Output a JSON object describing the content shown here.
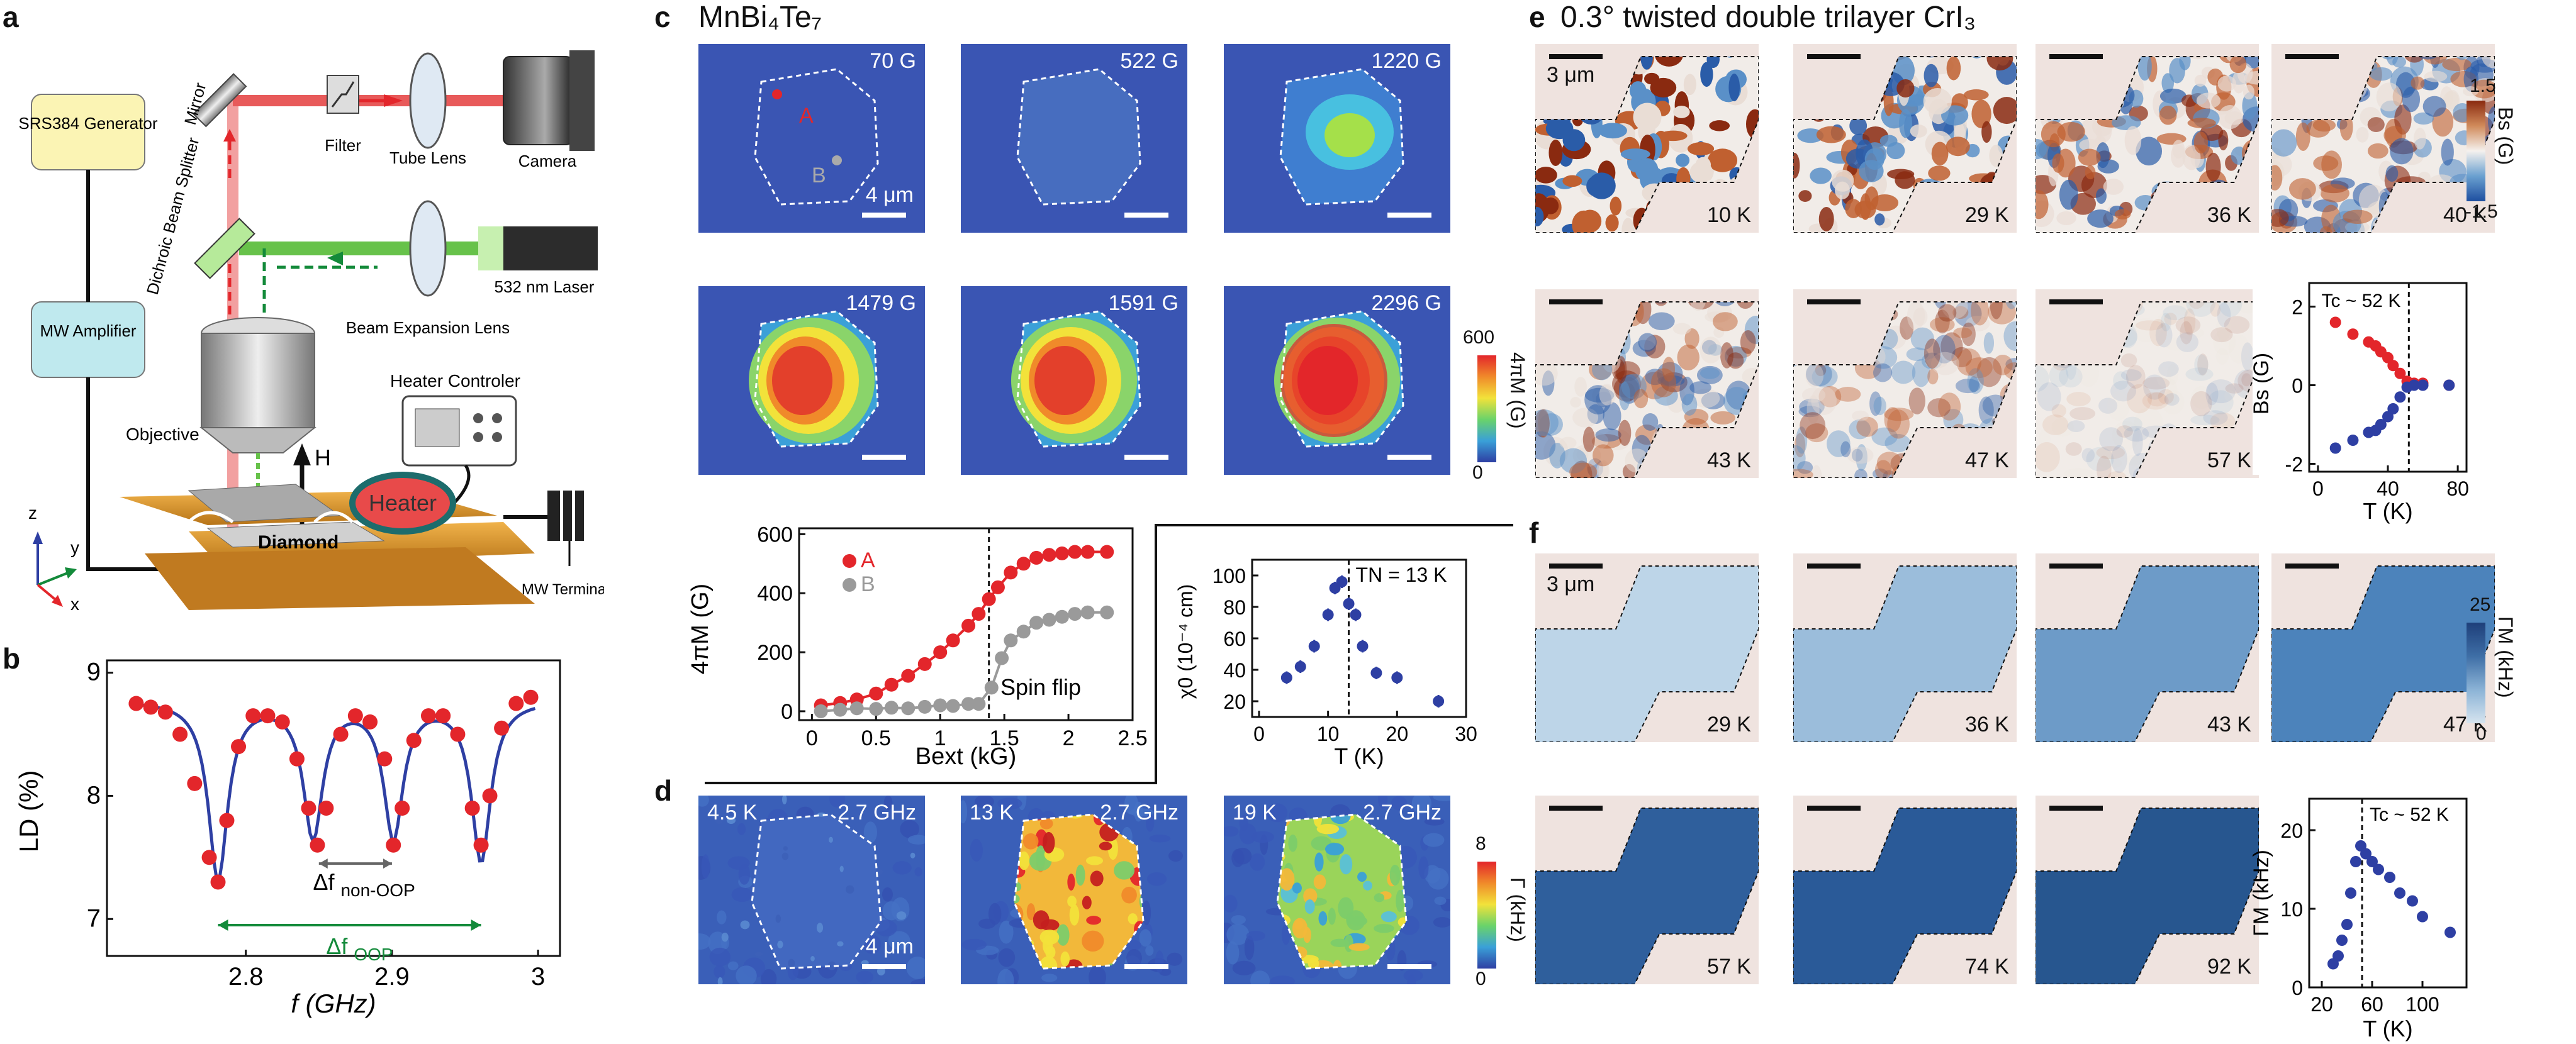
{
  "panels": {
    "a": "a",
    "b": "b",
    "c": "c",
    "d": "d",
    "e": "e",
    "f": "f"
  },
  "panel_a": {
    "generator": "SRS384 Generator",
    "amplifier": "MW Amplifier",
    "mirror": "Mirror",
    "filter": "Filter",
    "tube_lens": "Tube Lens",
    "camera": "Camera",
    "dichroic": "Dichroic Beam Splitter",
    "laser": "532 nm Laser",
    "beam_expansion": "Beam Expansion Lens",
    "objective": "Objective",
    "heater_controller": "Heater Controler",
    "heater": "Heater",
    "diamond": "Diamond",
    "field": "H",
    "terminator": "MW Terminator",
    "axis_z": "z",
    "axis_y": "y",
    "axis_x": "x"
  },
  "panel_c": {
    "title": "MnBi₄Te₇",
    "tiles": [
      "70 G",
      "522 G",
      "1220 G",
      "1479 G",
      "1591 G",
      "2296 G"
    ],
    "point_a": "A",
    "point_b": "B",
    "scale": "4 μm",
    "colorbar": {
      "max": "600",
      "min": "0",
      "title": "4πM (G)"
    }
  },
  "panel_d": {
    "tiles": [
      {
        "t": "4.5 K",
        "f": "2.7 GHz"
      },
      {
        "t": "13 K",
        "f": "2.7 GHz"
      },
      {
        "t": "19 K",
        "f": "2.7 GHz"
      }
    ],
    "scale": "4 μm",
    "colorbar": {
      "max": "8",
      "min": "0",
      "title": "Γ (kHz)"
    }
  },
  "panel_e": {
    "title": "0.3° twisted double trilayer CrI₃",
    "scale": "3 μm",
    "tiles": [
      "10 K",
      "29 K",
      "36 K",
      "40 K",
      "43 K",
      "47 K",
      "57 K"
    ],
    "colorbar": {
      "max": "1.5",
      "min": "-1.5",
      "title": "Bs (G)"
    }
  },
  "panel_f": {
    "scale": "3 μm",
    "tiles": [
      "29 K",
      "36 K",
      "43 K",
      "47 K",
      "57 K",
      "74 K",
      "92 K"
    ],
    "colorbar": {
      "max": "25",
      "min": "0",
      "title": "ΓM (kHz)"
    }
  },
  "colors": {
    "red": "#e3262b",
    "blue": "#2e3fa3",
    "gray": "#9a9a9a",
    "green": "#138a3a",
    "map_bg": "#3a55b3",
    "flake_bg": "#efe3df"
  },
  "chart_data": [
    {
      "id": "b",
      "type": "scatter",
      "xlabel": "f (GHz)",
      "ylabel": "LD (%)",
      "xlim": [
        2.705,
        3.015
      ],
      "ylim": [
        6.7,
        9.1
      ],
      "xticks": [
        "2.8",
        "2.9",
        "3"
      ],
      "yticks": [
        "7",
        "8",
        "9"
      ],
      "annotations": {
        "non_oop": "Δf",
        "non_oop_sub": "non-OOP",
        "oop": "Δf",
        "oop_sub": "OOP"
      },
      "x": [
        2.725,
        2.735,
        2.745,
        2.755,
        2.765,
        2.775,
        2.781,
        2.787,
        2.795,
        2.805,
        2.815,
        2.825,
        2.835,
        2.843,
        2.849,
        2.855,
        2.865,
        2.875,
        2.885,
        2.895,
        2.901,
        2.907,
        2.915,
        2.925,
        2.935,
        2.945,
        2.955,
        2.961,
        2.967,
        2.975,
        2.985,
        2.995
      ],
      "y": [
        8.75,
        8.72,
        8.68,
        8.5,
        8.1,
        7.5,
        7.3,
        7.8,
        8.4,
        8.65,
        8.65,
        8.6,
        8.3,
        7.9,
        7.6,
        7.9,
        8.5,
        8.65,
        8.6,
        8.3,
        7.6,
        7.9,
        8.45,
        8.65,
        8.65,
        8.5,
        7.9,
        7.6,
        8.0,
        8.55,
        8.75,
        8.8
      ]
    },
    {
      "id": "c-line",
      "type": "line",
      "xlabel": "Bext (kG)",
      "ylabel": "4πM (G)",
      "xlim": [
        -0.1,
        2.5
      ],
      "ylim": [
        -30,
        620
      ],
      "xticks": [
        "0",
        "0.5",
        "1",
        "1.5",
        "2",
        "2.5"
      ],
      "yticks": [
        "0",
        "200",
        "400",
        "600"
      ],
      "legend": [
        "A",
        "B"
      ],
      "annotation": "Spin flip",
      "series": [
        {
          "name": "A",
          "x": [
            0.07,
            0.22,
            0.35,
            0.5,
            0.62,
            0.75,
            0.88,
            1.0,
            1.1,
            1.22,
            1.3,
            1.38,
            1.45,
            1.55,
            1.65,
            1.75,
            1.85,
            1.95,
            2.05,
            2.15,
            2.3
          ],
          "y": [
            20,
            28,
            40,
            60,
            90,
            120,
            160,
            200,
            240,
            290,
            330,
            380,
            420,
            470,
            500,
            520,
            530,
            535,
            540,
            540,
            540
          ]
        },
        {
          "name": "B",
          "x": [
            0.07,
            0.22,
            0.35,
            0.5,
            0.62,
            0.75,
            0.88,
            1.0,
            1.1,
            1.22,
            1.3,
            1.4,
            1.48,
            1.55,
            1.65,
            1.75,
            1.85,
            1.95,
            2.05,
            2.15,
            2.3
          ],
          "y": [
            0,
            5,
            10,
            8,
            12,
            10,
            15,
            20,
            18,
            25,
            25,
            80,
            180,
            240,
            270,
            300,
            310,
            320,
            330,
            335,
            335
          ]
        }
      ]
    },
    {
      "id": "c-chi",
      "type": "scatter",
      "xlabel": "T (K)",
      "ylabel": "χ0 (10⁻⁴ cm)",
      "annotation": "TN = 13 K",
      "xlim": [
        -1,
        30
      ],
      "ylim": [
        10,
        110
      ],
      "xticks": [
        "0",
        "10",
        "20",
        "30"
      ],
      "yticks": [
        "20",
        "40",
        "60",
        "80",
        "100"
      ],
      "x": [
        4,
        6,
        8,
        10,
        11,
        12,
        13,
        14,
        15,
        17,
        20,
        26
      ],
      "y": [
        35,
        42,
        55,
        75,
        92,
        96,
        82,
        75,
        55,
        38,
        35,
        20
      ]
    },
    {
      "id": "e-inset",
      "type": "scatter",
      "xlabel": "T (K)",
      "ylabel": "Bs (G)",
      "annotation": "Tc ~ 52 K",
      "xlim": [
        -5,
        85
      ],
      "ylim": [
        -2.2,
        2.6
      ],
      "xticks": [
        "0",
        "40",
        "80"
      ],
      "yticks": [
        "-2",
        "0",
        "2"
      ],
      "series": [
        {
          "name": "up",
          "x": [
            10,
            20,
            29,
            33,
            36,
            40,
            43,
            47,
            51,
            55,
            60,
            75
          ],
          "y": [
            1.6,
            1.3,
            1.1,
            1.0,
            0.85,
            0.7,
            0.5,
            0.3,
            0.1,
            0.05,
            0.05,
            0.0
          ]
        },
        {
          "name": "down",
          "x": [
            10,
            20,
            29,
            33,
            36,
            40,
            43,
            47,
            51,
            55,
            60,
            75
          ],
          "y": [
            -1.6,
            -1.4,
            -1.2,
            -1.15,
            -1.0,
            -0.8,
            -0.6,
            -0.3,
            -0.05,
            0.0,
            0.0,
            0.0
          ]
        }
      ]
    },
    {
      "id": "f-inset",
      "type": "scatter",
      "xlabel": "T (K)",
      "ylabel": "ΓM (kHz)",
      "annotation": "Tc ~ 52 K",
      "xlim": [
        10,
        135
      ],
      "ylim": [
        0,
        24
      ],
      "xticks": [
        "20",
        "60",
        "100"
      ],
      "yticks": [
        "0",
        "10",
        "20"
      ],
      "x": [
        29,
        33,
        36,
        40,
        43,
        47,
        51,
        55,
        60,
        65,
        74,
        82,
        92,
        100,
        122
      ],
      "y": [
        3,
        4,
        6,
        8,
        12,
        16,
        18,
        17,
        16,
        15,
        14,
        12,
        11,
        9,
        7
      ]
    }
  ]
}
